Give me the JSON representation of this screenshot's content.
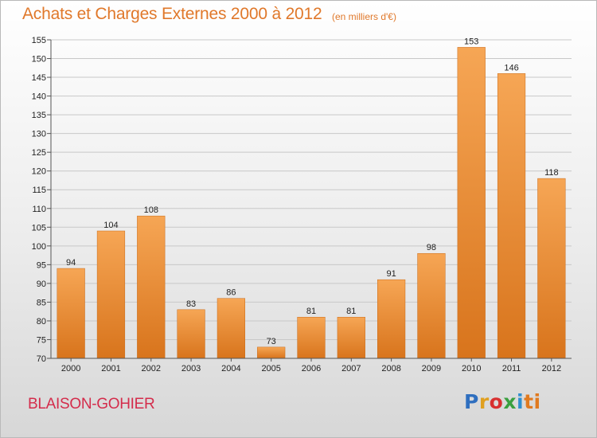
{
  "title": "Achats et Charges Externes 2000 à 2012",
  "subtitle": "(en milliers d'€)",
  "city": "BLAISON-GOHIER",
  "logo": [
    "P",
    "r",
    "o",
    "x",
    "i",
    "ti"
  ],
  "colors": {
    "bar_light": "#f6a655",
    "bar_dark": "#d8741c",
    "title": "#e0782a",
    "city": "#d42c4b"
  },
  "chart_data": {
    "type": "bar",
    "title": "Achats et Charges Externes 2000 à 2012",
    "subtitle": "(en milliers d'€)",
    "categories": [
      "2000",
      "2001",
      "2002",
      "2003",
      "2004",
      "2005",
      "2006",
      "2007",
      "2008",
      "2009",
      "2010",
      "2011",
      "2012"
    ],
    "values": [
      94,
      104,
      108,
      83,
      86,
      73,
      81,
      81,
      91,
      98,
      153,
      146,
      118
    ],
    "xlabel": "",
    "ylabel": "",
    "ylim": [
      70,
      155
    ],
    "yticks": [
      70,
      75,
      80,
      85,
      90,
      95,
      100,
      105,
      110,
      115,
      120,
      125,
      130,
      135,
      140,
      145,
      150,
      155
    ],
    "grid": true
  }
}
